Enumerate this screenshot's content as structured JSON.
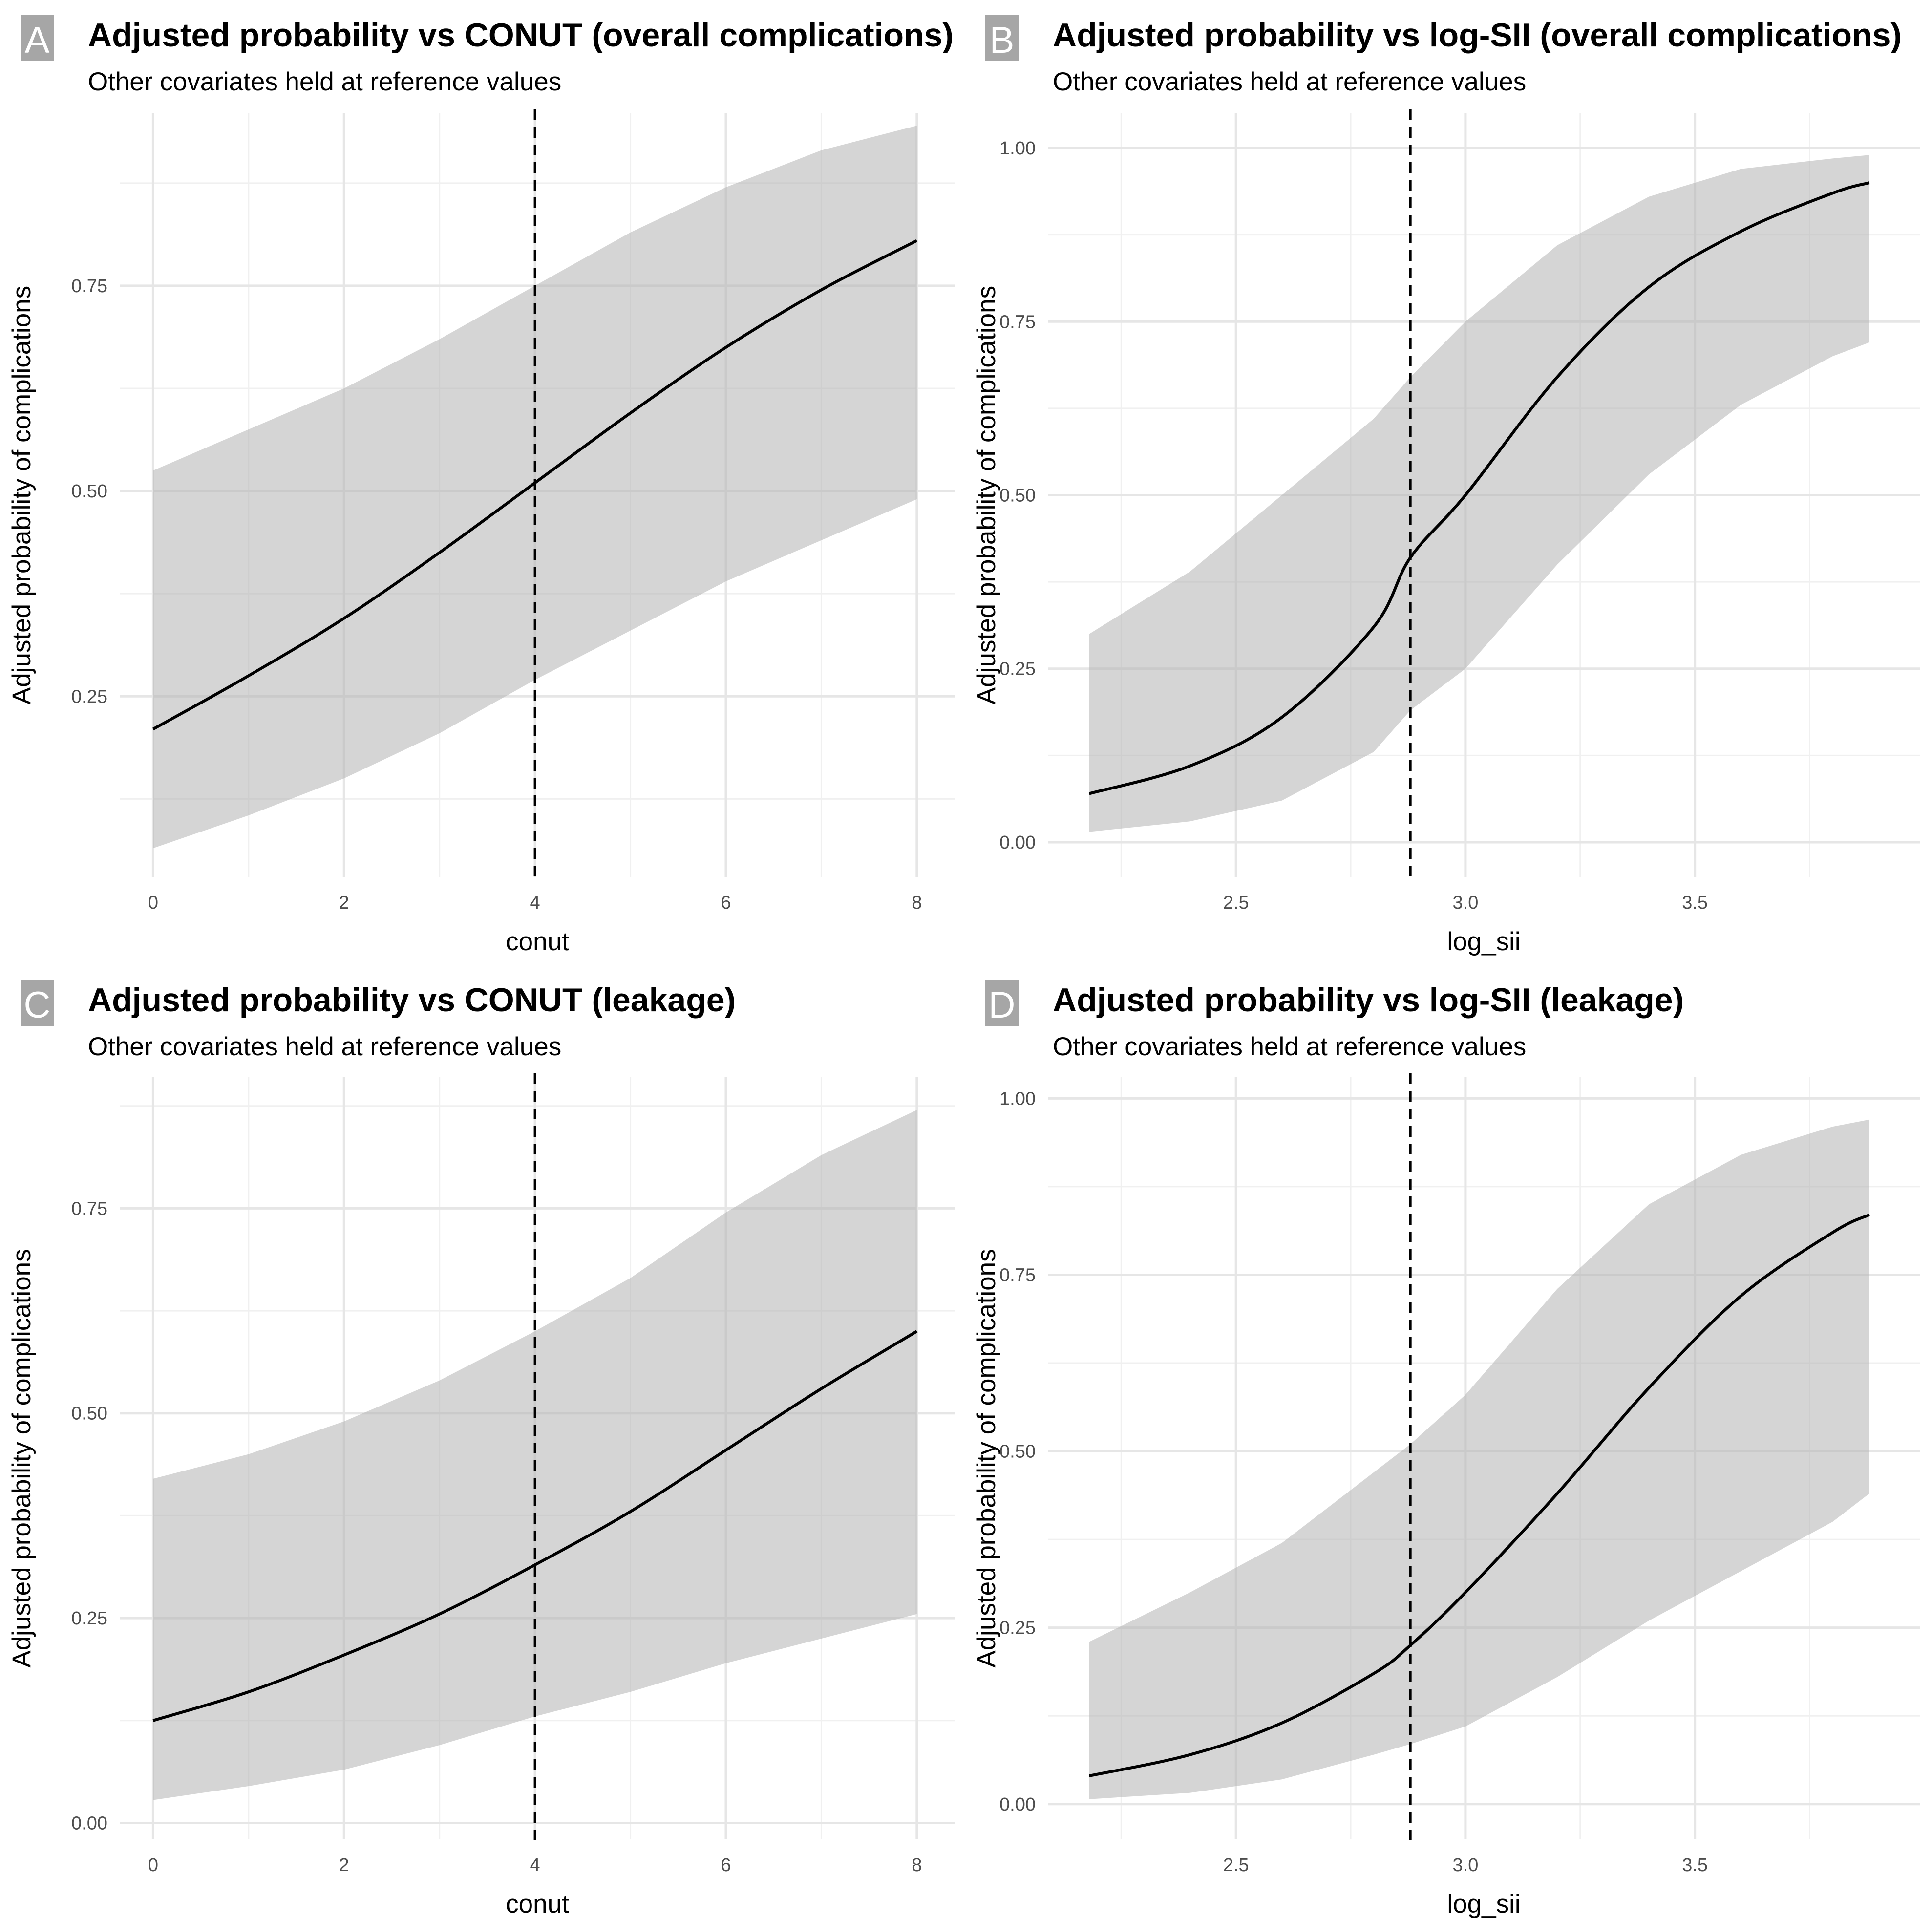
{
  "chart_data": [
    {
      "tag": "A",
      "type": "line",
      "title": "Adjusted probability vs CONUT (overall complications)",
      "subtitle": "Other covariates held at reference values",
      "xlabel": "conut",
      "ylabel": "Adjusted probability of complications",
      "xlim": [
        -0.35,
        8.4
      ],
      "ylim": [
        0.03,
        0.96
      ],
      "x_ticks": [
        0,
        2,
        4,
        6,
        8
      ],
      "x_tick_labels": [
        "0",
        "2",
        "4",
        "6",
        "8"
      ],
      "y_ticks": [
        0.25,
        0.5,
        0.75
      ],
      "y_tick_labels": [
        "0.25",
        "0.50",
        "0.75"
      ],
      "grid": true,
      "reference_line_x": 4,
      "x": [
        0,
        1,
        2,
        3,
        4,
        5,
        6,
        7,
        8
      ],
      "series": [
        {
          "name": "",
          "values": [
            0.21,
            0.275,
            0.345,
            0.425,
            0.51,
            0.595,
            0.675,
            0.745,
            0.805
          ]
        }
      ],
      "ci_lower": [
        0.065,
        0.105,
        0.15,
        0.205,
        0.27,
        0.33,
        0.39,
        0.44,
        0.49
      ],
      "ci_upper": [
        0.525,
        0.575,
        0.625,
        0.685,
        0.75,
        0.815,
        0.87,
        0.915,
        0.945
      ]
    },
    {
      "tag": "B",
      "type": "line",
      "title": "Adjusted probability vs log-SII (overall complications)",
      "subtitle": "Other covariates held at reference values",
      "xlabel": "log_sii",
      "ylabel": "Adjusted probability of complications",
      "xlim": [
        2.09,
        3.99
      ],
      "ylim": [
        -0.05,
        1.05
      ],
      "x_ticks": [
        2.5,
        3.0,
        3.5
      ],
      "x_tick_labels": [
        "2.5",
        "3.0",
        "3.5"
      ],
      "y_ticks": [
        0,
        0.25,
        0.5,
        0.75,
        1.0
      ],
      "y_tick_labels": [
        "0.00",
        "0.25",
        "0.50",
        "0.75",
        "1.00"
      ],
      "grid": true,
      "reference_line_x": 2.88,
      "x": [
        2.18,
        2.4,
        2.6,
        2.8,
        2.88,
        3.0,
        3.2,
        3.4,
        3.6,
        3.8,
        3.88
      ],
      "series": [
        {
          "name": "",
          "values": [
            0.07,
            0.11,
            0.18,
            0.31,
            0.41,
            0.5,
            0.67,
            0.8,
            0.88,
            0.935,
            0.95
          ]
        }
      ],
      "ci_lower": [
        0.015,
        0.03,
        0.06,
        0.13,
        0.19,
        0.25,
        0.4,
        0.53,
        0.63,
        0.7,
        0.72
      ],
      "ci_upper": [
        0.3,
        0.39,
        0.5,
        0.61,
        0.67,
        0.75,
        0.86,
        0.93,
        0.97,
        0.985,
        0.99
      ]
    },
    {
      "tag": "C",
      "type": "line",
      "title": "Adjusted probability vs CONUT (leakage)",
      "subtitle": "Other covariates held at reference values",
      "xlabel": "conut",
      "ylabel": "Adjusted probability of complications",
      "xlim": [
        -0.35,
        8.4
      ],
      "ylim": [
        -0.02,
        0.91
      ],
      "x_ticks": [
        0,
        2,
        4,
        6,
        8
      ],
      "x_tick_labels": [
        "0",
        "2",
        "4",
        "6",
        "8"
      ],
      "y_ticks": [
        0,
        0.25,
        0.5,
        0.75
      ],
      "y_tick_labels": [
        "0.00",
        "0.25",
        "0.50",
        "0.75"
      ],
      "grid": true,
      "reference_line_x": 4,
      "x": [
        0,
        1,
        2,
        3,
        4,
        5,
        6,
        7,
        8
      ],
      "series": [
        {
          "name": "",
          "values": [
            0.125,
            0.16,
            0.205,
            0.255,
            0.315,
            0.38,
            0.455,
            0.53,
            0.6
          ]
        }
      ],
      "ci_lower": [
        0.028,
        0.045,
        0.065,
        0.095,
        0.13,
        0.16,
        0.195,
        0.225,
        0.255
      ],
      "ci_upper": [
        0.42,
        0.45,
        0.49,
        0.54,
        0.6,
        0.665,
        0.745,
        0.815,
        0.87
      ]
    },
    {
      "tag": "D",
      "type": "line",
      "title": "Adjusted probability vs log-SII (leakage)",
      "subtitle": "Other covariates held at reference values",
      "xlabel": "log_sii",
      "ylabel": "Adjusted probability of complications",
      "xlim": [
        2.09,
        3.99
      ],
      "ylim": [
        -0.05,
        1.03
      ],
      "x_ticks": [
        2.5,
        3.0,
        3.5
      ],
      "x_tick_labels": [
        "2.5",
        "3.0",
        "3.5"
      ],
      "y_ticks": [
        0,
        0.25,
        0.5,
        0.75,
        1.0
      ],
      "y_tick_labels": [
        "0.00",
        "0.25",
        "0.50",
        "0.75",
        "1.00"
      ],
      "grid": true,
      "reference_line_x": 2.88,
      "x": [
        2.18,
        2.4,
        2.6,
        2.8,
        2.88,
        3.0,
        3.2,
        3.4,
        3.6,
        3.8,
        3.88
      ],
      "series": [
        {
          "name": "",
          "values": [
            0.04,
            0.07,
            0.115,
            0.185,
            0.225,
            0.3,
            0.44,
            0.59,
            0.72,
            0.81,
            0.835
          ]
        }
      ],
      "ci_lower": [
        0.007,
        0.016,
        0.035,
        0.07,
        0.085,
        0.11,
        0.18,
        0.26,
        0.33,
        0.4,
        0.44
      ],
      "ci_upper": [
        0.23,
        0.3,
        0.37,
        0.47,
        0.51,
        0.58,
        0.73,
        0.85,
        0.92,
        0.96,
        0.97
      ]
    }
  ]
}
